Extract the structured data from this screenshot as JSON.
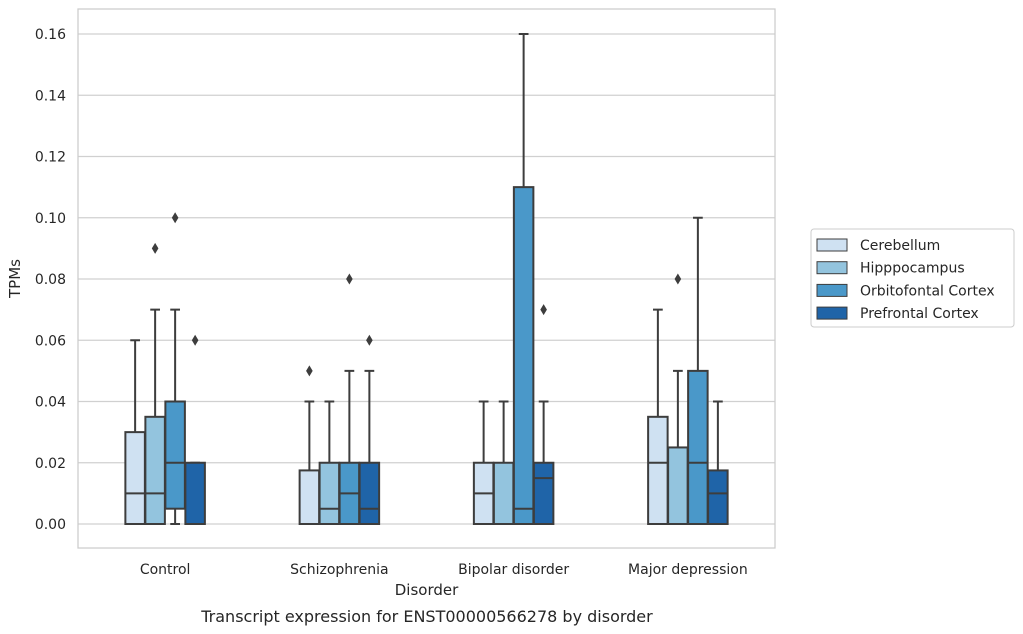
{
  "chart_data": {
    "type": "boxplot",
    "caption": "Transcript expression for ENST00000566278 by disorder",
    "xlabel": "Disorder",
    "ylabel": "TPMs",
    "ylim": [
      -0.008,
      0.168
    ],
    "yticks": [
      "0.00",
      "0.02",
      "0.04",
      "0.06",
      "0.08",
      "0.10",
      "0.12",
      "0.14",
      "0.16"
    ],
    "grid": true,
    "legend_position": "right",
    "categories": [
      "Control",
      "Schizophrenia",
      "Bipolar disorder",
      "Major depression"
    ],
    "series": [
      {
        "name": "Cerebellum",
        "color": "#cfe1f2",
        "boxes": [
          {
            "whislo": 0.0,
            "q1": 0.0,
            "med": 0.01,
            "q3": 0.03,
            "whishi": 0.06,
            "fliers": []
          },
          {
            "whislo": 0.0,
            "q1": 0.0,
            "med": 0.0,
            "q3": 0.0175,
            "whishi": 0.04,
            "fliers": [
              0.05
            ]
          },
          {
            "whislo": 0.0,
            "q1": 0.0,
            "med": 0.01,
            "q3": 0.02,
            "whishi": 0.04,
            "fliers": []
          },
          {
            "whislo": 0.0,
            "q1": 0.0,
            "med": 0.02,
            "q3": 0.035,
            "whishi": 0.07,
            "fliers": []
          }
        ]
      },
      {
        "name": "Hipppocampus",
        "color": "#93c4de",
        "boxes": [
          {
            "whislo": 0.0,
            "q1": 0.0,
            "med": 0.01,
            "q3": 0.035,
            "whishi": 0.07,
            "fliers": [
              0.09
            ]
          },
          {
            "whislo": 0.0,
            "q1": 0.0,
            "med": 0.005,
            "q3": 0.02,
            "whishi": 0.04,
            "fliers": []
          },
          {
            "whislo": 0.0,
            "q1": 0.0,
            "med": 0.0,
            "q3": 0.02,
            "whishi": 0.04,
            "fliers": []
          },
          {
            "whislo": 0.0,
            "q1": 0.0,
            "med": 0.0,
            "q3": 0.025,
            "whishi": 0.05,
            "fliers": [
              0.08
            ]
          }
        ]
      },
      {
        "name": "Orbitofontal Cortex",
        "color": "#4a98c9",
        "boxes": [
          {
            "whislo": 0.0,
            "q1": 0.005,
            "med": 0.02,
            "q3": 0.04,
            "whishi": 0.07,
            "fliers": [
              0.1
            ]
          },
          {
            "whislo": 0.0,
            "q1": 0.0,
            "med": 0.01,
            "q3": 0.02,
            "whishi": 0.05,
            "fliers": [
              0.08
            ]
          },
          {
            "whislo": 0.0,
            "q1": 0.0,
            "med": 0.005,
            "q3": 0.11,
            "whishi": 0.16,
            "fliers": []
          },
          {
            "whislo": 0.0,
            "q1": 0.0,
            "med": 0.02,
            "q3": 0.05,
            "whishi": 0.1,
            "fliers": []
          }
        ]
      },
      {
        "name": "Prefrontal Cortex",
        "color": "#1f64a8",
        "boxes": [
          {
            "whislo": 0.0,
            "q1": 0.0,
            "med": 0.0,
            "q3": 0.02,
            "whishi": 0.02,
            "fliers": [
              0.06
            ]
          },
          {
            "whislo": 0.0,
            "q1": 0.0,
            "med": 0.005,
            "q3": 0.02,
            "whishi": 0.05,
            "fliers": [
              0.06
            ]
          },
          {
            "whislo": 0.0,
            "q1": 0.0,
            "med": 0.015,
            "q3": 0.02,
            "whishi": 0.04,
            "fliers": [
              0.07
            ]
          },
          {
            "whislo": 0.0,
            "q1": 0.0,
            "med": 0.01,
            "q3": 0.0175,
            "whishi": 0.04,
            "fliers": []
          }
        ]
      }
    ]
  }
}
